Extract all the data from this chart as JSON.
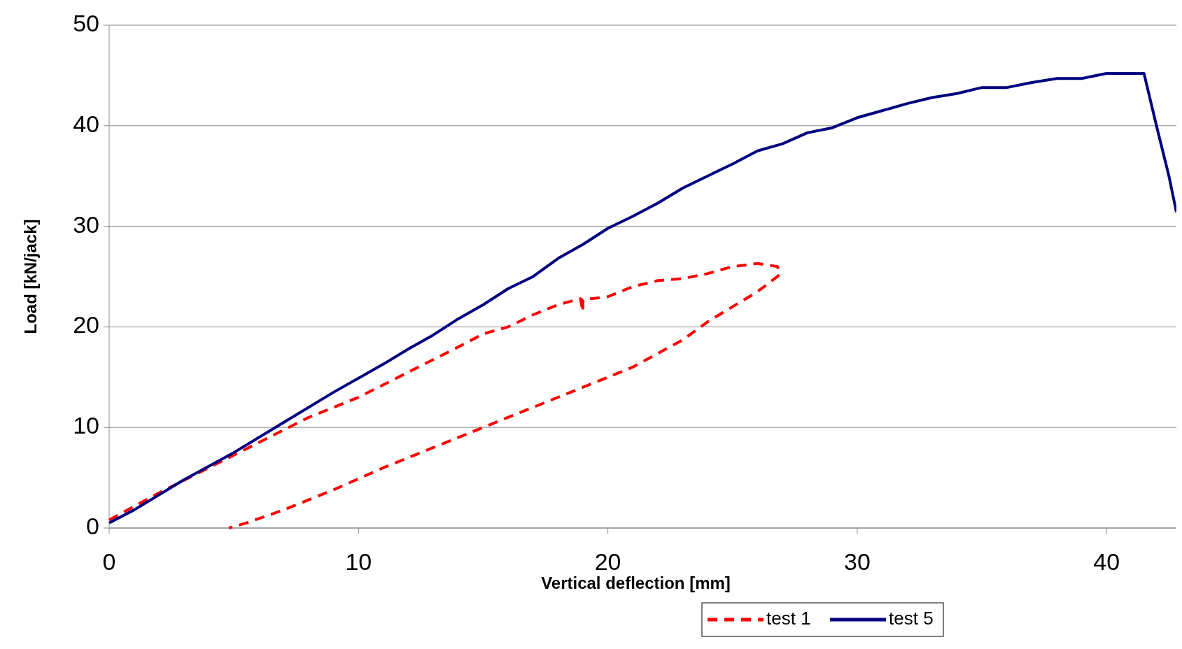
{
  "chart_data": {
    "type": "line",
    "xlabel": "Vertical deflection [mm]",
    "ylabel": "Load [kN/jack]",
    "xlim": [
      0,
      42.8
    ],
    "xticks": [
      0,
      10,
      20,
      30,
      40
    ],
    "ylim": [
      0,
      50
    ],
    "yticks": [
      0,
      10,
      20,
      30,
      40,
      50
    ],
    "grid": "y",
    "legend": "bottom",
    "series": [
      {
        "name": "test 1",
        "color": "#ff0000",
        "line_style": "dashed",
        "x": [
          0,
          2,
          4,
          6,
          8,
          10,
          12,
          14,
          15,
          16,
          17,
          18,
          18.9,
          19,
          19,
          20,
          21,
          22,
          23,
          24,
          25,
          26,
          26.8,
          26.9,
          26,
          24,
          23,
          21,
          19,
          17,
          15,
          13,
          11,
          9,
          7,
          5.5,
          4.8
        ],
        "values": [
          0.8,
          3.5,
          6,
          8.5,
          11,
          13,
          15.5,
          18,
          19.3,
          20,
          21.2,
          22.2,
          22.8,
          21.5,
          22.7,
          23,
          24,
          24.6,
          24.8,
          25.3,
          26,
          26.3,
          26,
          25.2,
          23.5,
          20.5,
          18.7,
          16,
          14,
          12,
          10,
          8,
          6,
          3.8,
          1.8,
          0.5,
          0
        ]
      },
      {
        "name": "test 5",
        "color": "#000080",
        "line_style": "solid",
        "x": [
          0,
          1,
          3,
          5,
          7,
          9,
          11,
          12,
          13,
          14,
          15,
          16,
          17,
          18,
          19,
          20,
          21,
          22,
          23,
          24,
          25,
          26,
          27,
          28,
          29,
          30,
          31,
          32,
          33,
          34,
          35,
          36,
          37,
          38,
          39,
          40,
          41.5,
          42,
          42.5,
          42.8
        ],
        "values": [
          0.5,
          1.8,
          4.8,
          7.5,
          10.5,
          13.5,
          16.3,
          17.8,
          19.2,
          20.8,
          22.2,
          23.8,
          25,
          26.8,
          28.2,
          29.8,
          31,
          32.3,
          33.8,
          35,
          36.2,
          37.5,
          38.2,
          39.3,
          39.8,
          40.8,
          41.5,
          42.2,
          42.8,
          43.2,
          43.8,
          43.8,
          44.3,
          44.7,
          44.7,
          45.2,
          45.2,
          40,
          35,
          31.4
        ]
      }
    ]
  }
}
